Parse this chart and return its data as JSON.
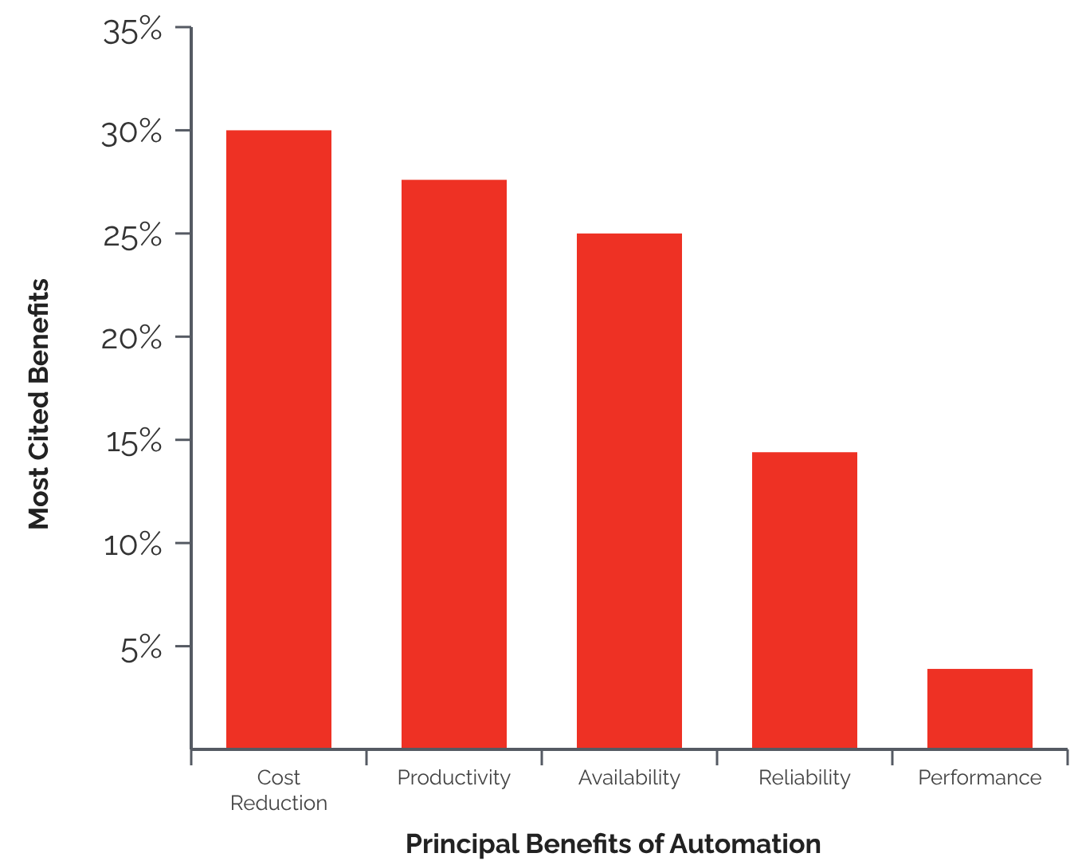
{
  "chart_data": {
    "type": "bar",
    "xlabel": "Principal Benefits of Automation",
    "ylabel": "Most Cited Benefits",
    "categories": [
      "Cost Reduction",
      "Productivity",
      "Availability",
      "Reliability",
      "Performance"
    ],
    "values": [
      30,
      27.6,
      25,
      14.4,
      3.9
    ],
    "color": "#ee3124",
    "ylim": [
      0,
      35
    ],
    "yticks": [
      {
        "value": 5,
        "label": "5%"
      },
      {
        "value": 10,
        "label": "10%"
      },
      {
        "value": 15,
        "label": "15%"
      },
      {
        "value": 20,
        "label": "20%"
      },
      {
        "value": 25,
        "label": "25%"
      },
      {
        "value": 30,
        "label": "30%"
      },
      {
        "value": 35,
        "label": "35%"
      }
    ],
    "grid": false
  }
}
